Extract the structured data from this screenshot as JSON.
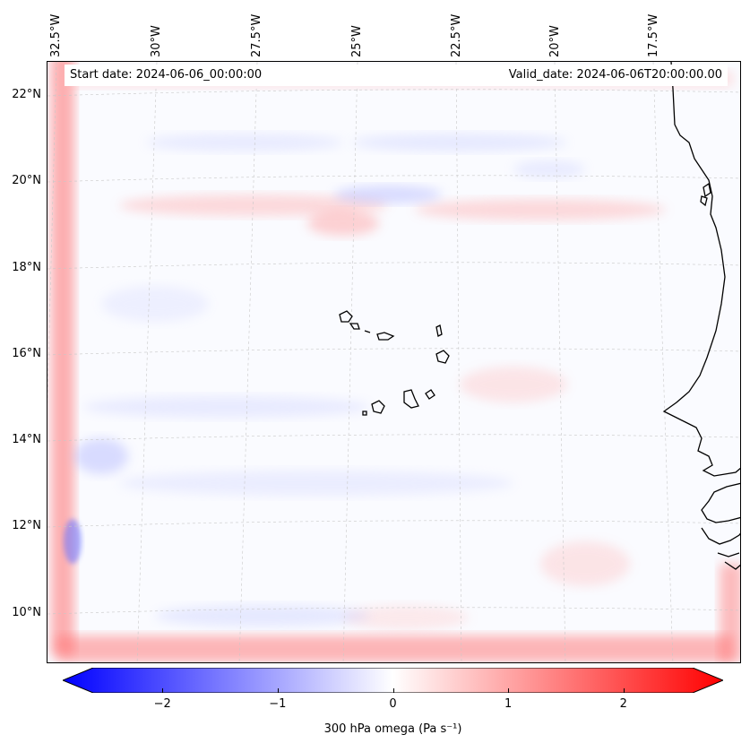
{
  "map": {
    "start_label": "Start date: 2024-06-06_00:00:00",
    "valid_label": "Valid_date: 2024-06-06T20:00:00.00",
    "longitude_labels": [
      "32.5°W",
      "30°W",
      "27.5°W",
      "25°W",
      "22.5°W",
      "20°W",
      "17.5°W"
    ],
    "latitude_labels": [
      "22°N",
      "20°N",
      "18°N",
      "16°N",
      "14°N",
      "12°N",
      "10°N"
    ],
    "field_colors": {
      "negative": "#3344ff",
      "positive": "#ff3333",
      "neutral": "#ffffff"
    },
    "coastline_color": "#000000"
  },
  "colorbar": {
    "ticks": [
      "−2",
      "−1",
      "0",
      "1",
      "2"
    ],
    "tick_values": [
      -2,
      -1,
      0,
      1,
      2
    ],
    "range": [
      -2.6,
      2.6
    ],
    "label": "300 hPa omega (Pa s⁻¹)",
    "min_color": "#0000ff",
    "max_color": "#ff0000"
  }
}
